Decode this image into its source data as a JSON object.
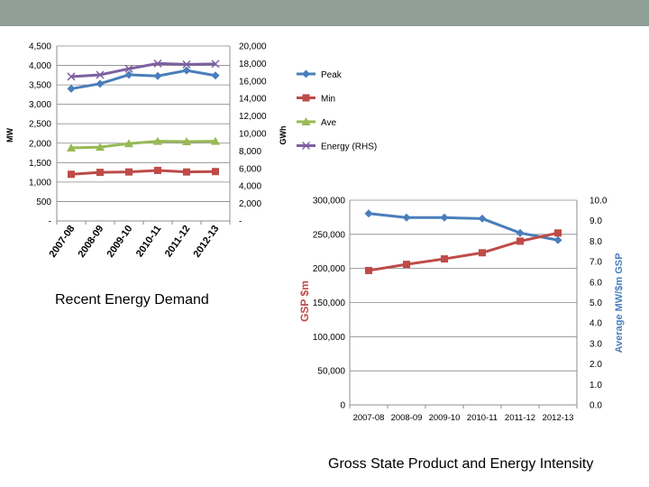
{
  "colors": {
    "band": "#8f9e97",
    "peak": "#4a7ebb",
    "min": "#be4b48",
    "ave": "#98b954",
    "energy": "#7d60a0",
    "gsp": "#be4b48",
    "intensity": "#4a7ebb",
    "grid": "#888888",
    "axis": "#8c8c8c"
  },
  "captions": {
    "left": "Recent Energy Demand",
    "right": "Gross State Product and Energy Intensity"
  },
  "chart_data": [
    {
      "type": "line",
      "title": "Recent Energy Demand",
      "categories": [
        "2007-08",
        "2008-09",
        "2009-10",
        "2010-11",
        "2011-12",
        "2012-13"
      ],
      "ylabel": "MW",
      "y2label": "GWh",
      "ylim": [
        0,
        4500
      ],
      "y2lim": [
        0,
        20000
      ],
      "y_ticks": [
        "-",
        "500",
        "1,000",
        "1,500",
        "2,000",
        "2,500",
        "3,000",
        "3,500",
        "4,000",
        "4,500"
      ],
      "y2_ticks": [
        "-",
        "2,000",
        "4,000",
        "6,000",
        "8,000",
        "10,000",
        "12,000",
        "14,000",
        "16,000",
        "18,000",
        "20,000"
      ],
      "grid": true,
      "legend": "right",
      "series": [
        {
          "name": "Peak",
          "axis": "left",
          "marker": "diamond",
          "values": [
            3400,
            3530,
            3760,
            3730,
            3870,
            3740
          ]
        },
        {
          "name": "Min",
          "axis": "left",
          "marker": "square",
          "values": [
            1200,
            1250,
            1260,
            1300,
            1260,
            1270
          ]
        },
        {
          "name": "Ave",
          "axis": "left",
          "marker": "triangle",
          "values": [
            1880,
            1900,
            1990,
            2050,
            2040,
            2050
          ]
        },
        {
          "name": "Energy (RHS)",
          "axis": "right",
          "marker": "x",
          "values": [
            16500,
            16700,
            17400,
            18000,
            17900,
            17950
          ]
        }
      ]
    },
    {
      "type": "line",
      "title": "Gross State Product and Energy Intensity",
      "categories": [
        "2007-08",
        "2008-09",
        "2009-10",
        "2010-11",
        "2011-12",
        "2012-13"
      ],
      "ylabel": "GSP $m",
      "y2label": "Average MW/$m GSP",
      "ylim": [
        0,
        300000
      ],
      "y2lim": [
        0,
        10
      ],
      "y_ticks": [
        "0",
        "50,000",
        "100,000",
        "150,000",
        "200,000",
        "250,000",
        "300,000"
      ],
      "y2_ticks": [
        "0.0",
        "1.0",
        "2.0",
        "3.0",
        "4.0",
        "5.0",
        "6.0",
        "7.0",
        "8.0",
        "9.0",
        "10.0"
      ],
      "grid": true,
      "series": [
        {
          "name": "Average MW/$m GSP",
          "axis": "right",
          "marker": "diamond",
          "values": [
            9.35,
            9.15,
            9.15,
            9.1,
            8.4,
            8.05
          ]
        },
        {
          "name": "GSP $m",
          "axis": "left",
          "marker": "square",
          "values": [
            197000,
            206000,
            214000,
            223000,
            240000,
            252000
          ]
        }
      ]
    }
  ]
}
